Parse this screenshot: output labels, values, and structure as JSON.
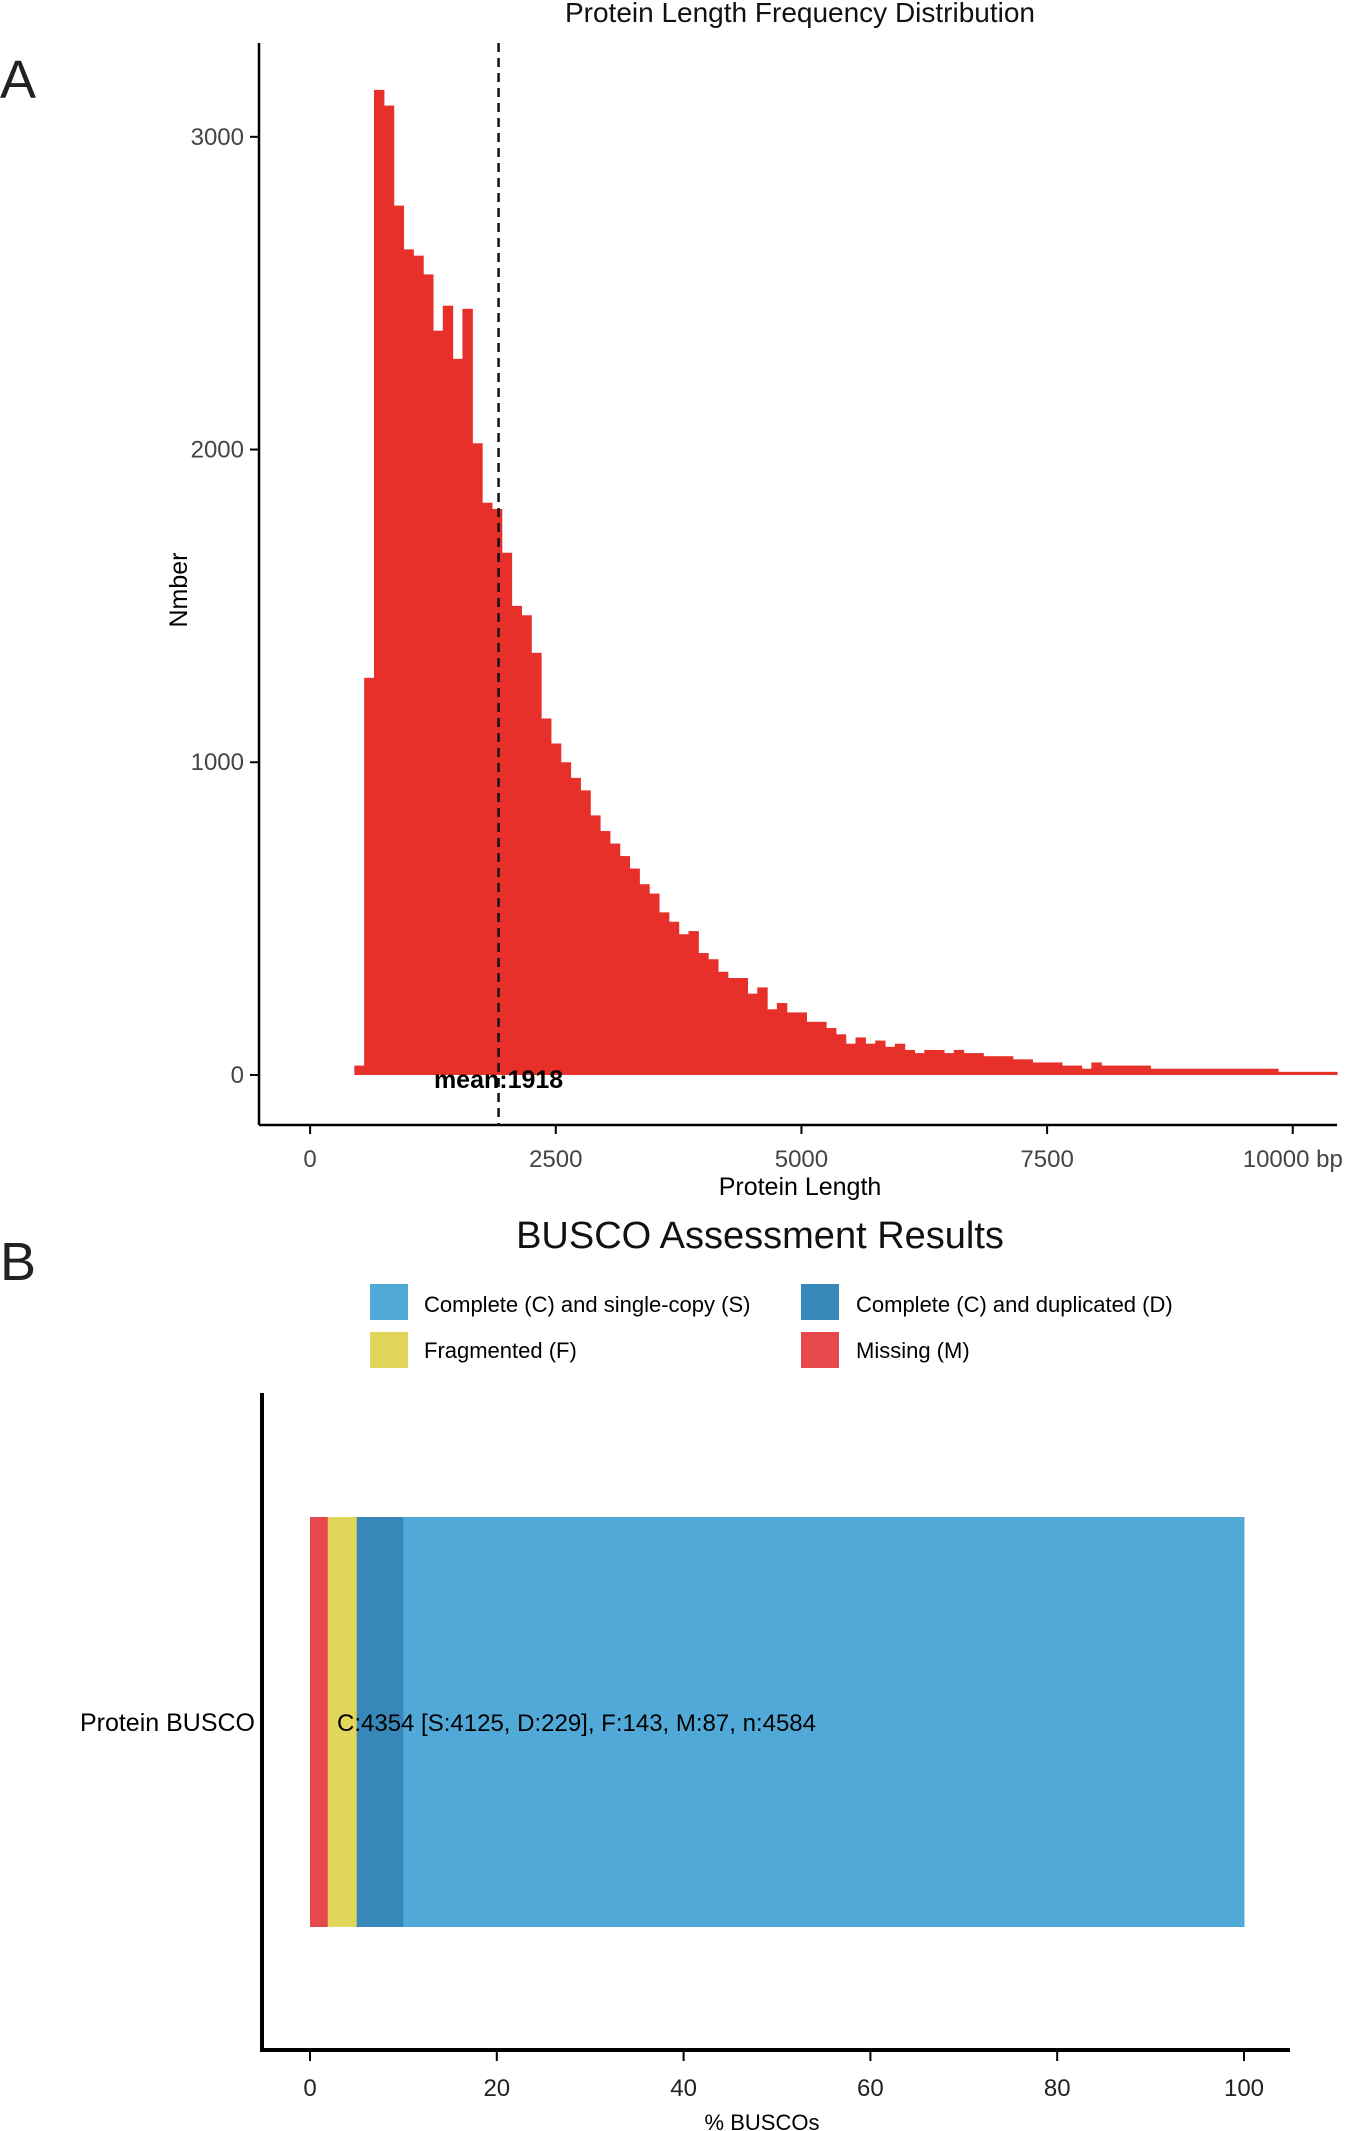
{
  "figure": {
    "panel_a_letter": "A",
    "panel_b_letter": "B"
  },
  "chart_data": [
    {
      "type": "bar",
      "title": "Protein Length Frequency Distribution",
      "xlabel": "Protein Length",
      "ylabel": "Nmber",
      "xlim": [
        -520,
        10450
      ],
      "ylim": [
        -160,
        3300
      ],
      "x_ticks": [
        0,
        2500,
        5000,
        7500,
        10000
      ],
      "x_tick_labels": [
        "0",
        "2500",
        "5000",
        "7500",
        "10000 bp"
      ],
      "y_ticks": [
        0,
        1000,
        2000,
        3000
      ],
      "y_tick_labels": [
        "0",
        "1000",
        "2000",
        "3000"
      ],
      "bar_color": "#e8302b",
      "bin_start": 450,
      "bin_width": 100,
      "values": [
        30,
        1270,
        3150,
        3100,
        2780,
        2640,
        2620,
        2560,
        2380,
        2460,
        2290,
        2450,
        2020,
        1830,
        1810,
        1670,
        1500,
        1470,
        1350,
        1140,
        1060,
        1000,
        950,
        910,
        830,
        780,
        740,
        700,
        660,
        610,
        580,
        520,
        490,
        450,
        460,
        390,
        370,
        330,
        310,
        310,
        260,
        280,
        210,
        230,
        200,
        200,
        170,
        170,
        150,
        130,
        100,
        120,
        100,
        110,
        90,
        100,
        80,
        70,
        80,
        80,
        70,
        80,
        70,
        70,
        60,
        60,
        60,
        50,
        50,
        40,
        40,
        40,
        30,
        30,
        20,
        40,
        30,
        30,
        30,
        30,
        30,
        20,
        20,
        20,
        20,
        20,
        20,
        20,
        20,
        20,
        20,
        20,
        20,
        20,
        10,
        10,
        10,
        10,
        10,
        10
      ],
      "mean_line": {
        "value": 1918,
        "label": "mean:1918"
      },
      "legend": "none",
      "grid": false
    },
    {
      "type": "bar",
      "orientation": "horizontal",
      "stacked": true,
      "title": "BUSCO Assessment Results",
      "xlabel": "% BUSCOs",
      "xlim": [
        0,
        100
      ],
      "x_ticks": [
        0,
        20,
        40,
        60,
        80,
        100
      ],
      "categories": [
        "Protein BUSCO"
      ],
      "series": [
        {
          "name": "Missing (M)",
          "values": [
            1.9
          ],
          "color": "#e5484d"
        },
        {
          "name": "Fragmented (F)",
          "values": [
            3.1
          ],
          "color": "#e2d65a"
        },
        {
          "name": "Complete (C) and duplicated (D)",
          "values": [
            5.0
          ],
          "color": "#3787b9"
        },
        {
          "name": "Complete (C) and single-copy (S)",
          "values": [
            90.0
          ],
          "color": "#51a9d8"
        }
      ],
      "legend_order": [
        "Complete (C) and single-copy (S)",
        "Complete (C) and duplicated (D)",
        "Fragmented (F)",
        "Missing (M)"
      ],
      "legend_position": "top",
      "annotation": "C:4354 [S:4125, D:229], F:143, M:87, n:4584",
      "grid": false
    }
  ]
}
